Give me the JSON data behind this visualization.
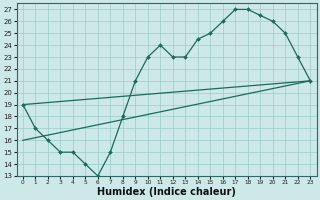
{
  "xlabel": "Humidex (Indice chaleur)",
  "bg_color": "#cce8e8",
  "grid_color": "#99cccc",
  "line_color": "#1a6b5a",
  "xlim": [
    -0.5,
    23.5
  ],
  "ylim": [
    13,
    27.5
  ],
  "xticks": [
    0,
    1,
    2,
    3,
    4,
    5,
    6,
    7,
    8,
    9,
    10,
    11,
    12,
    13,
    14,
    15,
    16,
    17,
    18,
    19,
    20,
    21,
    22,
    23
  ],
  "yticks": [
    13,
    14,
    15,
    16,
    17,
    18,
    19,
    20,
    21,
    22,
    23,
    24,
    25,
    26,
    27
  ],
  "line1_x": [
    0,
    1,
    2,
    3,
    4,
    5,
    6,
    7,
    8,
    9,
    10,
    11,
    12,
    13,
    14,
    15,
    16,
    17,
    18,
    19,
    20,
    21,
    22,
    23
  ],
  "line1_y": [
    19,
    17,
    16,
    15,
    15,
    14,
    13,
    15,
    18,
    21,
    23,
    24,
    23,
    23,
    24.5,
    25,
    26,
    27,
    27,
    26.5,
    26,
    25,
    23,
    21
  ],
  "line2_x": [
    0,
    23
  ],
  "line2_y": [
    19,
    21
  ],
  "line3_x": [
    0,
    23
  ],
  "line3_y": [
    16,
    21
  ],
  "xlabel_fontsize": 7,
  "tick_fontsize": 5.5
}
